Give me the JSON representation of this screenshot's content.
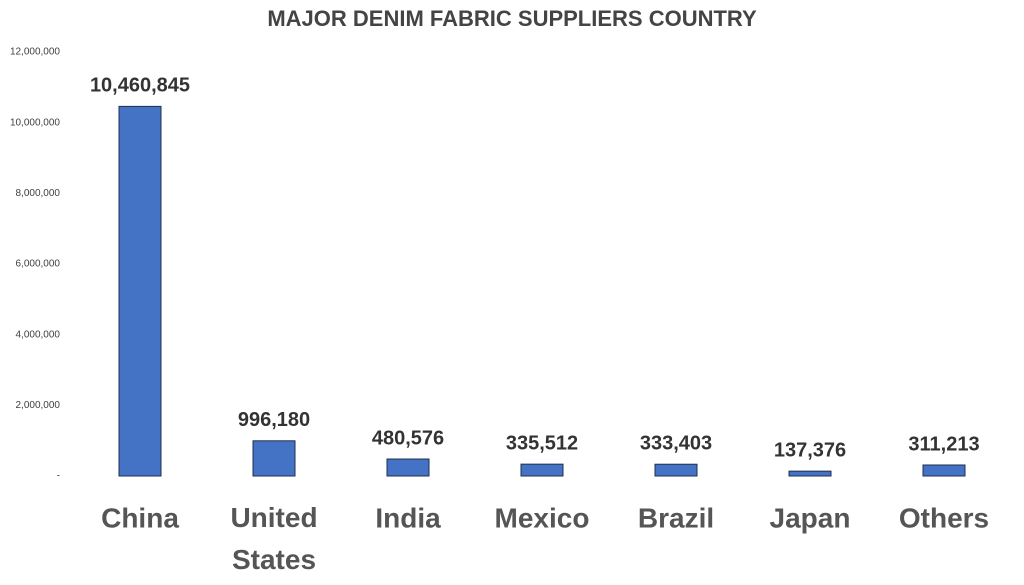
{
  "chart_data": {
    "type": "bar",
    "title": "MAJOR DENIM FABRIC SUPPLIERS COUNTRY",
    "categories": [
      "China",
      "United States",
      "India",
      "Mexico",
      "Brazil",
      "Japan",
      "Others"
    ],
    "values": [
      10460845,
      996180,
      480576,
      335512,
      333403,
      137376,
      311213
    ],
    "value_labels": [
      "10,460,845",
      "996,180",
      "480,576",
      "335,512",
      "333,403",
      "137,376",
      "311,213"
    ],
    "color": "#4472c4",
    "ylim": [
      0,
      12000000
    ],
    "yticks": [
      {
        "value": 0,
        "label": "-"
      },
      {
        "value": 2000000,
        "label": "2,000,000"
      },
      {
        "value": 4000000,
        "label": "4,000,000"
      },
      {
        "value": 6000000,
        "label": "6,000,000"
      },
      {
        "value": 8000000,
        "label": "8,000,000"
      },
      {
        "value": 10000000,
        "label": "10,000,000"
      },
      {
        "value": 12000000,
        "label": "12,000,000"
      }
    ],
    "grid": false
  }
}
